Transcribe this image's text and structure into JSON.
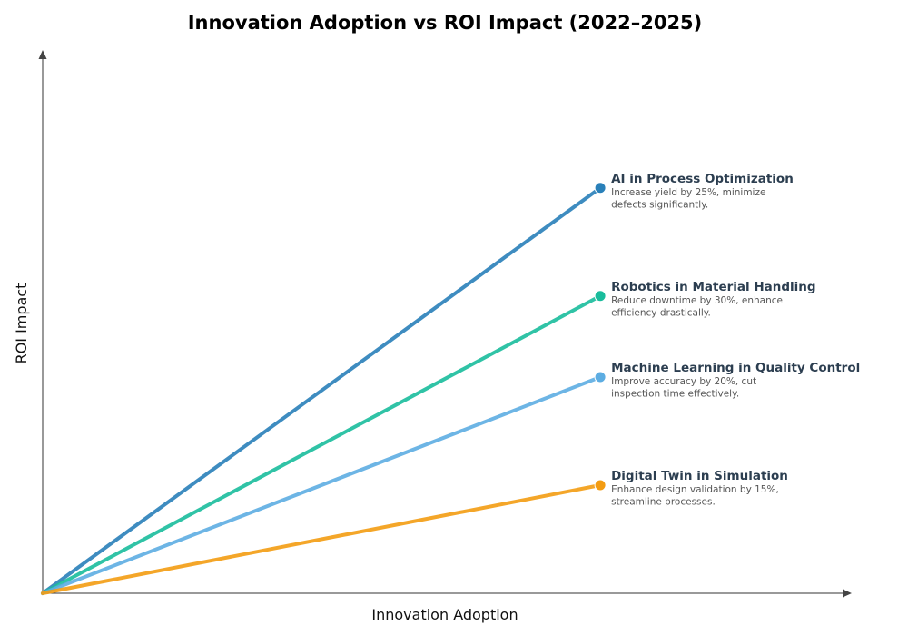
{
  "chart_data": {
    "type": "line",
    "title": "Innovation Adoption vs ROI Impact (2022–2025)",
    "xlabel": "Innovation Adoption",
    "ylabel": "ROI Impact",
    "xlim": [
      0,
      1
    ],
    "ylim": [
      0,
      1
    ],
    "grid": false,
    "ticks": false,
    "series": [
      {
        "name": "AI in Process Optimization",
        "description": [
          "Increase yield by 25%, minimize",
          "defects significantly."
        ],
        "x": [
          0,
          0.69
        ],
        "y": [
          0,
          0.75
        ],
        "color": "#2980b9"
      },
      {
        "name": "Robotics in Material Handling",
        "description": [
          "Reduce downtime by 30%, enhance",
          "efficiency drastically."
        ],
        "x": [
          0,
          0.69
        ],
        "y": [
          0,
          0.55
        ],
        "color": "#1abc9c"
      },
      {
        "name": "Machine Learning in Quality Control",
        "description": [
          "Improve accuracy by 20%, cut",
          "inspection time effectively."
        ],
        "x": [
          0,
          0.69
        ],
        "y": [
          0,
          0.4
        ],
        "color": "#5dade2"
      },
      {
        "name": "Digital Twin in Simulation",
        "description": [
          "Enhance design validation by 15%,",
          "streamline processes."
        ],
        "x": [
          0,
          0.69
        ],
        "y": [
          0,
          0.2
        ],
        "color": "#f39c12"
      }
    ]
  }
}
